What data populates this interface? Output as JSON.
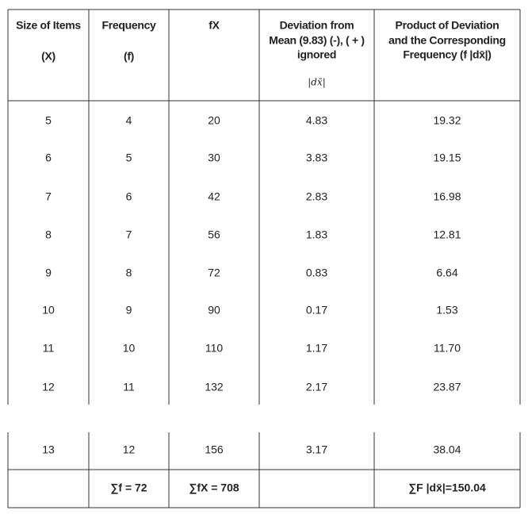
{
  "table": {
    "header": [
      {
        "lines": [
          "Size of Items",
          "(X)"
        ]
      },
      {
        "lines": [
          "Frequency",
          "(f)"
        ]
      },
      {
        "lines": [
          "fX"
        ]
      },
      {
        "lines": [
          "Deviation from",
          "Mean (9.83) (-), ( + )",
          "ignored"
        ],
        "symbol": "|dx̄|"
      },
      {
        "lines": [
          "Product of Deviation",
          "and the Corresponding",
          "Frequency (f |dx̄|)"
        ]
      }
    ],
    "rows": [
      [
        "5",
        "4",
        "20",
        "4.83",
        "19.32"
      ],
      [
        "6",
        "5",
        "30",
        "3.83",
        "19.15"
      ],
      [
        "7",
        "6",
        "42",
        "2.83",
        "16.98"
      ],
      [
        "8",
        "7",
        "56",
        "1.83",
        "12.81"
      ],
      [
        "9",
        "8",
        "72",
        "0.83",
        "6.64"
      ],
      [
        "10",
        "9",
        "90",
        "0.17",
        "1.53"
      ],
      [
        "11",
        "10",
        "110",
        "1.17",
        "11.70"
      ],
      [
        "12",
        "11",
        "132",
        "2.17",
        "23.87"
      ],
      [
        "13",
        "12",
        "156",
        "3.17",
        "38.04"
      ]
    ],
    "totals": {
      "frequency": "∑f = 72",
      "fx": "∑fX = 708",
      "product": "∑F |dx̄|=150.04"
    }
  }
}
